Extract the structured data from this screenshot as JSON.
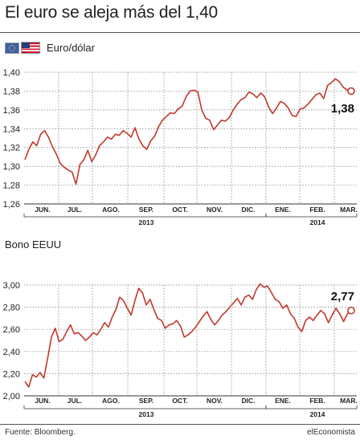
{
  "title": "El euro se aleja más del 1,40",
  "chart1_label": "Euro/dólar",
  "chart2_label": "Bono EEUU",
  "source": "Fuente: Bloomberg.",
  "brand": "elEconomista",
  "colors": {
    "line": "#c0392b",
    "grid": "#777777",
    "text": "#222222"
  },
  "icons": [
    "eu-flag-icon",
    "us-flag-icon"
  ],
  "chart_data": [
    {
      "type": "line",
      "title": "Euro/dólar",
      "months": [
        "JUN.",
        "JUL.",
        "AGO.",
        "SEP.",
        "OCT.",
        "NOV.",
        "DIC.",
        "ENE.",
        "FEB.",
        "MAR."
      ],
      "years": [
        {
          "label": "2013",
          "months": [
            "JUN.",
            "JUL.",
            "AGO.",
            "SEP.",
            "OCT.",
            "NOV.",
            "DIC."
          ]
        },
        {
          "label": "2014",
          "months": [
            "ENE.",
            "FEB.",
            "MAR."
          ]
        }
      ],
      "yticks": [
        "1,40",
        "1,38",
        "1,36",
        "1,34",
        "1,32",
        "1,30",
        "1,28",
        "1,26"
      ],
      "ylim": [
        1.26,
        1.4
      ],
      "last_value_label": "1,38",
      "series": [
        {
          "values": [
            1.307,
            1.318,
            1.326,
            1.322,
            1.334,
            1.338,
            1.331,
            1.321,
            1.313,
            1.303,
            1.299,
            1.296,
            1.294,
            1.281,
            1.302,
            1.307,
            1.317,
            1.305,
            1.312,
            1.322,
            1.326,
            1.331,
            1.329,
            1.334,
            1.333,
            1.338,
            1.335,
            1.331,
            1.341,
            1.329,
            1.322,
            1.318,
            1.327,
            1.332,
            1.342,
            1.349,
            1.353,
            1.357,
            1.356,
            1.361,
            1.364,
            1.374,
            1.38,
            1.381,
            1.379,
            1.36,
            1.351,
            1.349,
            1.339,
            1.344,
            1.349,
            1.348,
            1.352,
            1.36,
            1.366,
            1.371,
            1.373,
            1.379,
            1.377,
            1.373,
            1.378,
            1.374,
            1.363,
            1.356,
            1.362,
            1.369,
            1.367,
            1.362,
            1.354,
            1.353,
            1.361,
            1.362,
            1.366,
            1.371,
            1.376,
            1.378,
            1.372,
            1.386,
            1.389,
            1.393,
            1.39,
            1.384,
            1.381,
            1.38
          ]
        }
      ]
    },
    {
      "type": "line",
      "title": "Bono EEUU",
      "months": [
        "JUN.",
        "JUL.",
        "AGO.",
        "SEP.",
        "OCT.",
        "NOV.",
        "DIC.",
        "ENE.",
        "FEB.",
        "MAR."
      ],
      "years": [
        {
          "label": "2013",
          "months": [
            "JUN.",
            "JUL.",
            "AGO.",
            "SEP.",
            "OCT.",
            "NOV.",
            "DIC."
          ]
        },
        {
          "label": "2014",
          "months": [
            "ENE.",
            "FEB.",
            "MAR."
          ]
        }
      ],
      "yticks": [
        "3,00",
        "2,80",
        "2,60",
        "2,40",
        "2,20",
        "2,00"
      ],
      "ylim": [
        2.0,
        3.0
      ],
      "last_value_label": "2,77",
      "series": [
        {
          "values": [
            2.13,
            2.08,
            2.19,
            2.17,
            2.21,
            2.16,
            2.34,
            2.53,
            2.61,
            2.49,
            2.51,
            2.58,
            2.64,
            2.56,
            2.57,
            2.54,
            2.5,
            2.53,
            2.57,
            2.55,
            2.6,
            2.66,
            2.62,
            2.71,
            2.78,
            2.89,
            2.86,
            2.79,
            2.73,
            2.86,
            2.97,
            2.93,
            2.82,
            2.87,
            2.78,
            2.7,
            2.68,
            2.61,
            2.64,
            2.65,
            2.68,
            2.63,
            2.53,
            2.55,
            2.58,
            2.62,
            2.67,
            2.72,
            2.76,
            2.69,
            2.64,
            2.68,
            2.73,
            2.76,
            2.8,
            2.84,
            2.88,
            2.82,
            2.89,
            2.91,
            2.87,
            2.96,
            3.01,
            2.98,
            2.99,
            2.93,
            2.87,
            2.85,
            2.79,
            2.82,
            2.74,
            2.7,
            2.62,
            2.58,
            2.68,
            2.71,
            2.68,
            2.73,
            2.77,
            2.74,
            2.66,
            2.73,
            2.79,
            2.74,
            2.67,
            2.74,
            2.77
          ]
        }
      ]
    }
  ]
}
